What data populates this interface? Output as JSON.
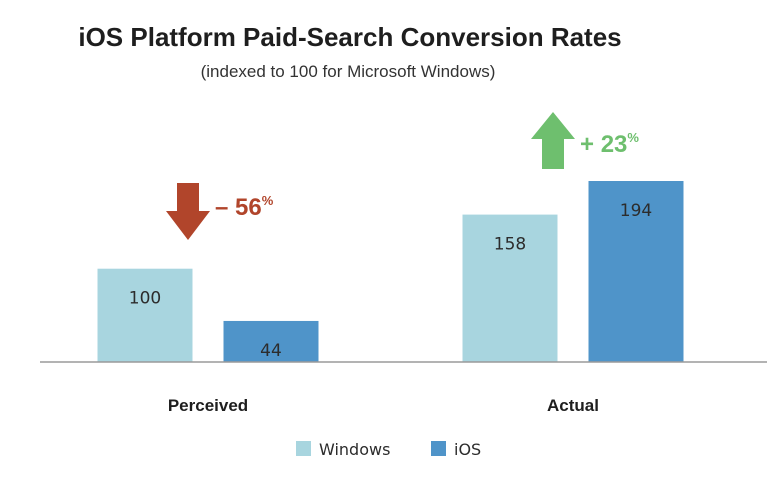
{
  "chart_data": {
    "type": "bar",
    "title": "iOS Platform Paid-Search Conversion Rates",
    "subtitle": "(indexed to 100 for Microsoft Windows)",
    "categories": [
      "Perceived",
      "Actual"
    ],
    "series": [
      {
        "name": "Windows",
        "values": [
          100,
          158
        ],
        "color": "#a8d5df"
      },
      {
        "name": "iOS",
        "values": [
          44,
          194
        ],
        "color": "#4f94c9"
      }
    ],
    "ylim": [
      0,
      194
    ],
    "grid": false,
    "legend_position": "bottom",
    "annotations": [
      {
        "category": "Perceived",
        "direction": "down",
        "sign": "–",
        "value": "56",
        "pct": "%",
        "color": "#b1452b"
      },
      {
        "category": "Actual",
        "direction": "up",
        "sign": "+",
        "value": "23",
        "pct": "%",
        "color": "#6ebf6e"
      }
    ]
  }
}
